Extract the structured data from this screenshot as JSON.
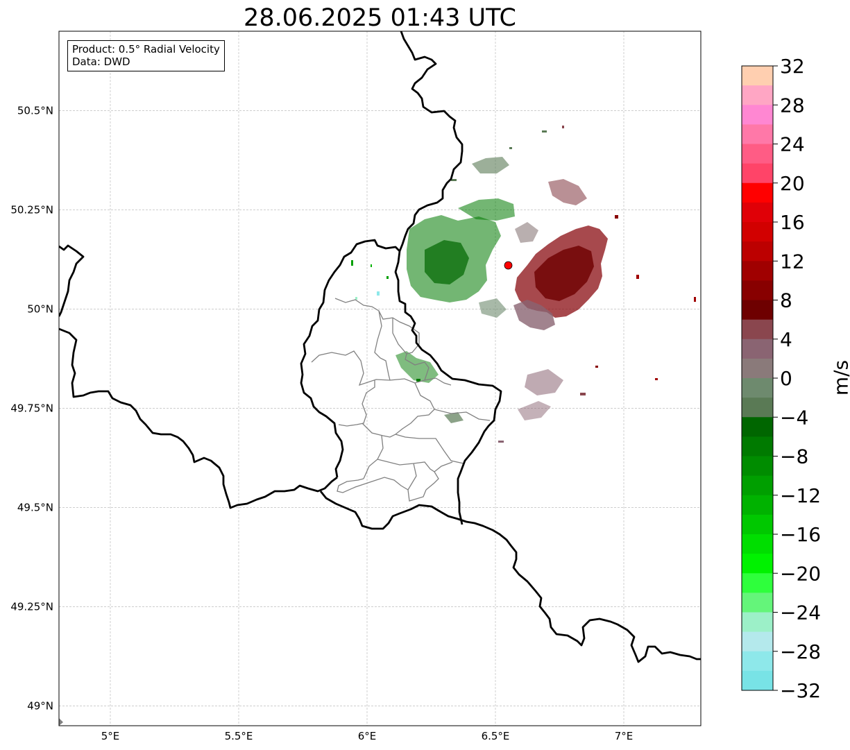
{
  "title": "28.06.2025 01:43 UTC",
  "info": {
    "product": "Product: 0.5° Radial Velocity",
    "data": "Data: DWD"
  },
  "map": {
    "lon_range": [
      4.8,
      7.3
    ],
    "lat_range": [
      48.95,
      50.7
    ],
    "lat_ticks": [
      {
        "value": 50.5,
        "label": "50.5°N"
      },
      {
        "value": 50.25,
        "label": "50.25°N"
      },
      {
        "value": 50.0,
        "label": "50°N"
      },
      {
        "value": 49.75,
        "label": "49.75°N"
      },
      {
        "value": 49.5,
        "label": "49.5°N"
      },
      {
        "value": 49.25,
        "label": "49.25°N"
      },
      {
        "value": 49.0,
        "label": "49°N"
      }
    ],
    "lon_ticks": [
      {
        "value": 5.0,
        "label": "5°E"
      },
      {
        "value": 5.5,
        "label": "5.5°E"
      },
      {
        "value": 6.0,
        "label": "6°E"
      },
      {
        "value": 6.5,
        "label": "6.5°E"
      },
      {
        "value": 7.0,
        "label": "7°E"
      }
    ],
    "radar_site": {
      "lon": 6.55,
      "lat": 50.11,
      "color": "#ff0000"
    },
    "grid": true
  },
  "colorbar": {
    "unit": "m/s",
    "min": -32,
    "max": 32,
    "tick_values": [
      32,
      28,
      24,
      20,
      16,
      12,
      8,
      4,
      0,
      -4,
      -8,
      -12,
      -16,
      -20,
      -24,
      -28,
      -32
    ],
    "tick_labels": [
      "32",
      "28",
      "24",
      "20",
      "16",
      "12",
      "8",
      "4",
      "0",
      "−4",
      "−8",
      "−12",
      "−16",
      "−20",
      "−24",
      "−28",
      "−32"
    ],
    "colors_top_to_bottom": [
      "#ffcfb0",
      "#ffa6c4",
      "#ff87d2",
      "#ff78a8",
      "#ff5c85",
      "#ff4468",
      "#ff0000",
      "#e00007",
      "#d20000",
      "#bc0000",
      "#a00000",
      "#880000",
      "#6e0000",
      "#8a464e",
      "#8a6472",
      "#8a7a7a",
      "#6e8a6e",
      "#5a7a55",
      "#006600",
      "#007a00",
      "#008c00",
      "#009f00",
      "#00b200",
      "#00c800",
      "#00de00",
      "#00f200",
      "#2eff3c",
      "#64f57a",
      "#9cf0c8",
      "#b4e9ec",
      "#8ee8ea",
      "#78e3e6"
    ]
  }
}
